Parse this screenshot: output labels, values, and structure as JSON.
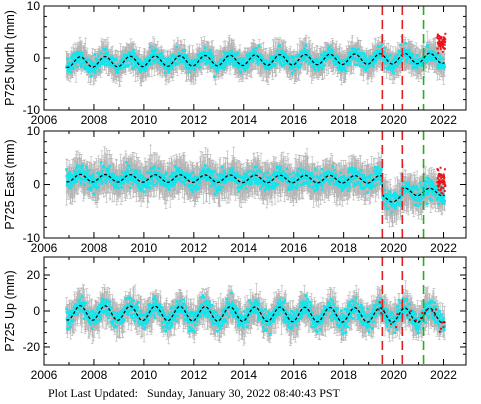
{
  "colors": {
    "errorbar": "#b4b4b4",
    "daily": "#10e6ee",
    "rapid": "#e8141a",
    "model": "#000000",
    "offset_equipment": "#e02020",
    "offset_other": "#20b020"
  },
  "chart_data": [
    {
      "type": "scatter",
      "name": "north",
      "ylabel": "P725 North (mm)",
      "xlim": [
        2006,
        2022.9
      ],
      "ylim": [
        -10,
        10
      ],
      "xticks": [
        "2006",
        "2008",
        "2010",
        "2012",
        "2014",
        "2016",
        "2018",
        "2020",
        "2022"
      ],
      "yticks": [
        "-10",
        "0",
        "10"
      ],
      "series": [
        {
          "values": {
            "start": 2006.9,
            "end": 2022.05,
            "trend_per_yr": 0.05,
            "offset_mm": -0.8,
            "annual_amp": 1.0,
            "noise": 1.1,
            "errbar": 2.2
          }
        },
        {
          "values": {
            "start": 2021.75,
            "end": 2022.08,
            "level": 3.0,
            "noise": 1.2
          }
        }
      ],
      "offset_lines": [
        {
          "x": 2019.55,
          "color_key": "offset_equipment"
        },
        {
          "x": 2020.35,
          "color_key": "offset_equipment"
        },
        {
          "x": 2021.2,
          "color_key": "offset_other"
        }
      ]
    },
    {
      "type": "scatter",
      "name": "east",
      "ylabel": "P725 East (mm)",
      "xlim": [
        2006,
        2022.9
      ],
      "ylim": [
        -10,
        10
      ],
      "xticks": [
        "2006",
        "2008",
        "2010",
        "2012",
        "2014",
        "2016",
        "2018",
        "2020",
        "2022"
      ],
      "yticks": [
        "-10",
        "0",
        "10"
      ],
      "series": [
        {
          "values": {
            "start": 2006.9,
            "end": 2022.05,
            "trend_per_yr": -0.02,
            "offset_mm": 1.2,
            "annual_amp": 0.7,
            "noise": 1.3,
            "errbar": 2.8,
            "step_at": 2019.55,
            "step_mm": -3.5,
            "step2_at": 2020.35,
            "step2_mm": 1.2
          }
        },
        {
          "values": {
            "start": 2021.75,
            "end": 2022.08,
            "level": 0.5,
            "noise": 1.5
          }
        }
      ],
      "offset_lines": [
        {
          "x": 2019.55,
          "color_key": "offset_equipment"
        },
        {
          "x": 2020.35,
          "color_key": "offset_equipment"
        },
        {
          "x": 2021.2,
          "color_key": "offset_other"
        }
      ]
    },
    {
      "type": "scatter",
      "name": "up",
      "ylabel": "P725 Up (mm)",
      "xlim": [
        2006,
        2022.9
      ],
      "ylim": [
        -30,
        30
      ],
      "xticks": [
        "2006",
        "2008",
        "2010",
        "2012",
        "2014",
        "2016",
        "2018",
        "2020",
        "2022"
      ],
      "yticks": [
        "-20",
        "0",
        "20"
      ],
      "series": [
        {
          "values": {
            "start": 2006.9,
            "end": 2022.05,
            "trend_per_yr": -0.1,
            "offset_mm": -1.0,
            "annual_amp": 4.0,
            "noise": 4.0,
            "errbar": 7.0
          }
        },
        {
          "values": {
            "start": 2019.4,
            "end": 2022.08,
            "level": -4.0,
            "noise": 4.0
          }
        }
      ],
      "offset_lines": [
        {
          "x": 2019.55,
          "color_key": "offset_equipment"
        },
        {
          "x": 2020.35,
          "color_key": "offset_equipment"
        },
        {
          "x": 2021.2,
          "color_key": "offset_other"
        }
      ]
    }
  ],
  "footer": {
    "label": "Plot Last Updated:",
    "date": "Sunday, January 30, 2022 08:40:43 PST"
  }
}
